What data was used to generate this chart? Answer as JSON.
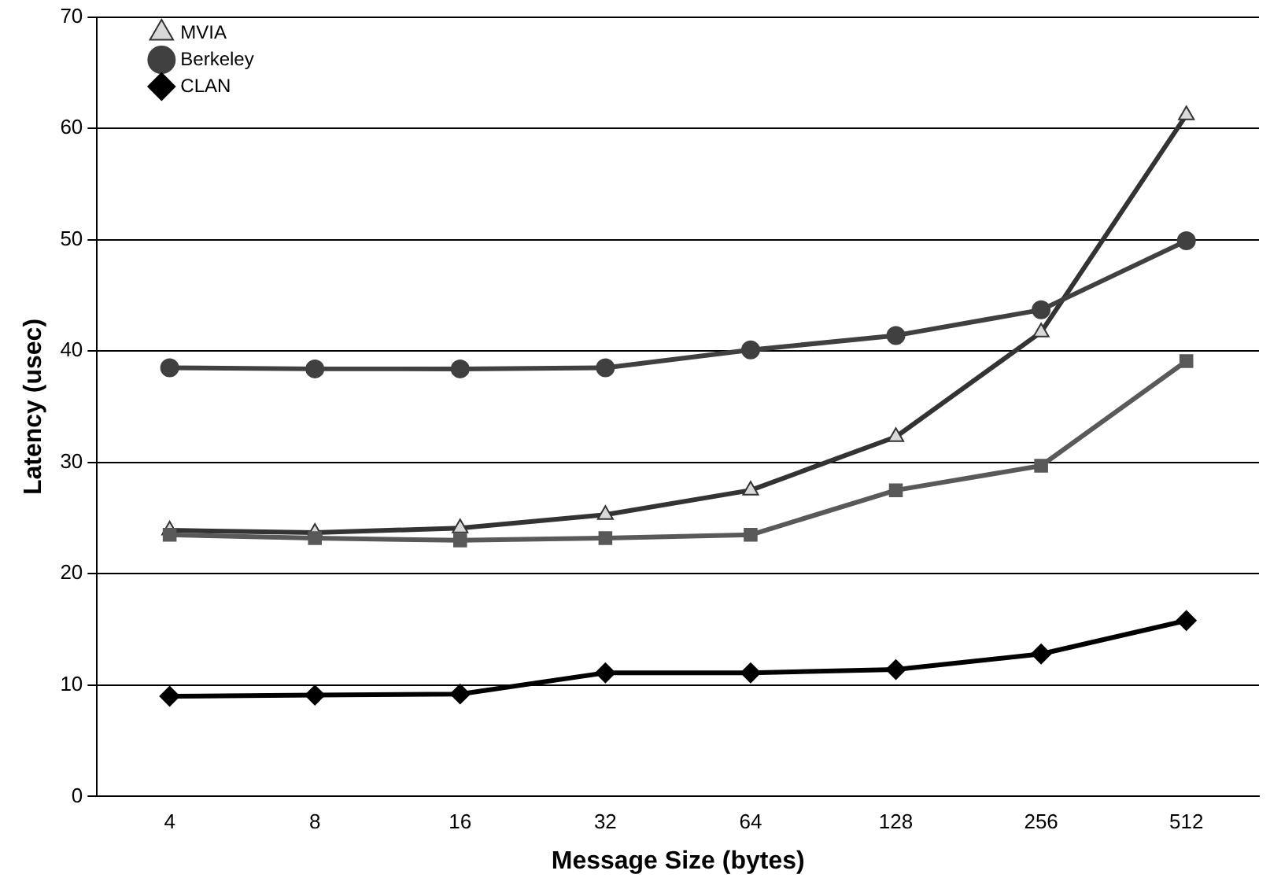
{
  "chart_data": {
    "type": "line",
    "xlabel": "Message Size (bytes)",
    "ylabel": "Latency (usec)",
    "categories": [
      "4",
      "8",
      "16",
      "32",
      "64",
      "128",
      "256",
      "512"
    ],
    "ylim": [
      0,
      70
    ],
    "yticks": [
      0,
      10,
      20,
      30,
      40,
      50,
      60,
      70
    ],
    "grid": "y",
    "legend": "top left",
    "line_style": "solid",
    "series": [
      {
        "name": "MVIA",
        "color": "#333333",
        "marker": "triangle",
        "values": [
          23.9,
          23.7,
          24.1,
          25.3,
          27.5,
          32.3,
          41.7,
          61.2
        ]
      },
      {
        "name": "Berkeley",
        "color": "#404040",
        "marker": "circle",
        "values": [
          38.5,
          38.4,
          38.4,
          38.5,
          40.1,
          41.4,
          43.7,
          49.9
        ]
      },
      {
        "name": "CLAN",
        "color": "#000000",
        "marker": "diamond",
        "values": [
          9.0,
          9.1,
          9.2,
          11.1,
          11.1,
          11.4,
          12.8,
          15.8
        ]
      },
      {
        "color": "#595959",
        "marker": "square",
        "values": [
          23.5,
          23.2,
          23.0,
          23.2,
          23.5,
          27.5,
          29.7,
          39.1
        ]
      }
    ]
  }
}
